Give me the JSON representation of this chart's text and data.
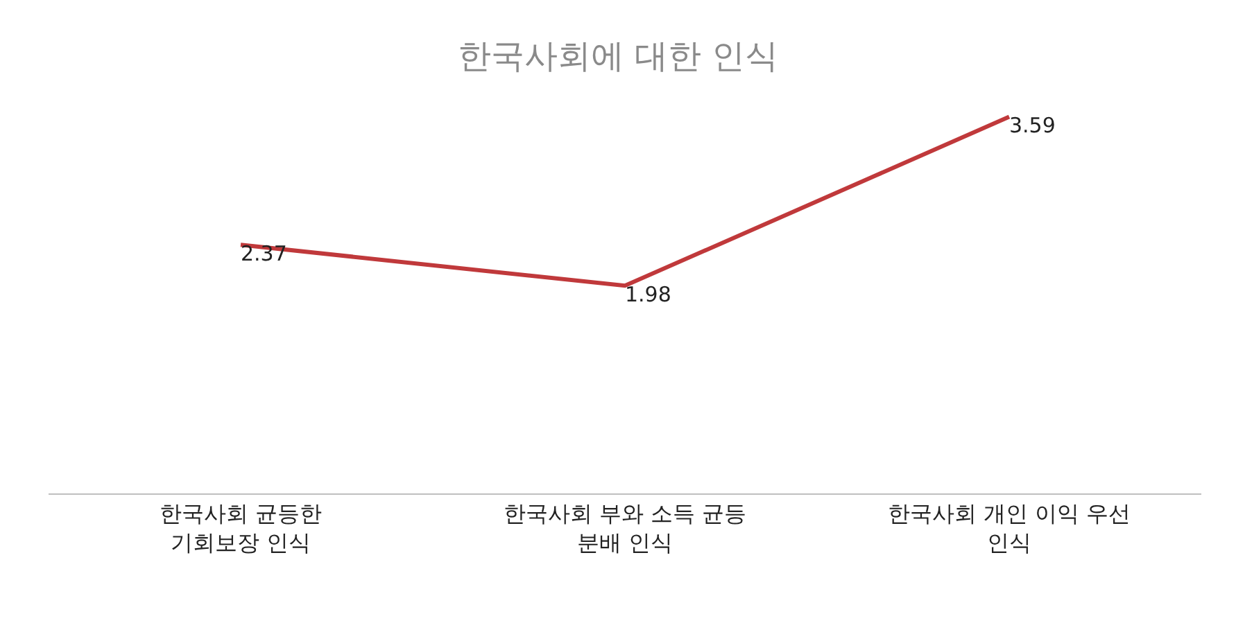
{
  "chart_data": {
    "type": "line",
    "title": "한국사회에 대한 인식",
    "categories": [
      "한국사회 균등한\n기회보장 인식",
      "한국사회 부와 소득 균등\n분배 인식",
      "한국사회 개인 이익 우선\n인식"
    ],
    "series": [
      {
        "color": "#c0393b",
        "values": [
          2.37,
          1.98,
          3.59
        ]
      }
    ],
    "data_labels": true,
    "marker": "none",
    "line_style": "solid"
  }
}
